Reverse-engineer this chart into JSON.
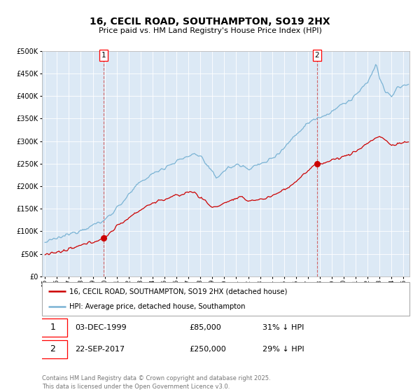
{
  "title": "16, CECIL ROAD, SOUTHAMPTON, SO19 2HX",
  "subtitle": "Price paid vs. HM Land Registry's House Price Index (HPI)",
  "legend_red": "16, CECIL ROAD, SOUTHAMPTON, SO19 2HX (detached house)",
  "legend_blue": "HPI: Average price, detached house, Southampton",
  "annotation1_date": "03-DEC-1999",
  "annotation1_price": "£85,000",
  "annotation1_hpi": "31% ↓ HPI",
  "annotation2_date": "22-SEP-2017",
  "annotation2_price": "£250,000",
  "annotation2_hpi": "29% ↓ HPI",
  "point1_year": 1999.917,
  "point1_value_red": 85000,
  "point2_year": 2017.72,
  "point2_value_red": 250000,
  "ylim": [
    0,
    500000
  ],
  "yticks": [
    0,
    50000,
    100000,
    150000,
    200000,
    250000,
    300000,
    350000,
    400000,
    450000,
    500000
  ],
  "background_color": "#dce9f5",
  "red_color": "#cc0000",
  "blue_color": "#7ab3d4",
  "footer_text": "Contains HM Land Registry data © Crown copyright and database right 2025.\nThis data is licensed under the Open Government Licence v3.0."
}
